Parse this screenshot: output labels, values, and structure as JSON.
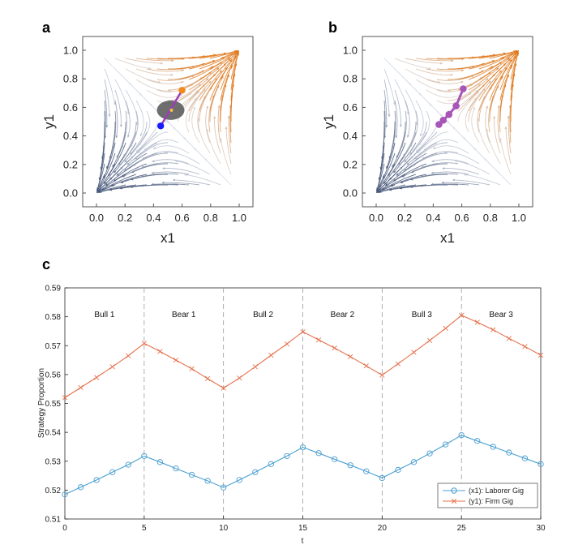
{
  "panels": {
    "a": {
      "label": "a",
      "xlabel": "x1",
      "ylabel": "y1",
      "xticks": [
        "0.0",
        "0.2",
        "0.4",
        "0.6",
        "0.8",
        "1.0"
      ],
      "yticks": [
        "0.0",
        "0.2",
        "0.4",
        "0.6",
        "0.8",
        "1.0"
      ],
      "equilibrium": [
        0.5,
        0.5
      ],
      "colors": {
        "left": "#4a5a7c",
        "mid": "#d8dee8",
        "right": "#e07a1f"
      },
      "trajectory": {
        "start": [
          0.6,
          0.72
        ],
        "end": [
          0.45,
          0.47
        ],
        "start_color": "#f18a1c",
        "end_color": "#1a1aff",
        "line_color": "#9b3fb5",
        "ellipse_center": [
          0.52,
          0.58
        ],
        "ellipse_color": "#555555"
      }
    },
    "b": {
      "label": "b",
      "xlabel": "x1",
      "ylabel": "y1",
      "xticks": [
        "0.0",
        "0.2",
        "0.4",
        "0.6",
        "0.8",
        "1.0"
      ],
      "yticks": [
        "0.0",
        "0.2",
        "0.4",
        "0.6",
        "0.8",
        "1.0"
      ],
      "equilibrium": [
        0.5,
        0.5
      ],
      "colors": {
        "left": "#4a5a7c",
        "mid": "#d8dee8",
        "right": "#e07a1f"
      },
      "trajectory": {
        "points": [
          [
            0.44,
            0.48
          ],
          [
            0.47,
            0.51
          ],
          [
            0.51,
            0.55
          ],
          [
            0.56,
            0.61
          ],
          [
            0.61,
            0.73
          ]
        ],
        "color": "#a855b8"
      }
    },
    "c": {
      "label": "c"
    }
  },
  "chart_data": {
    "type": "line",
    "title": "",
    "xlabel": "t",
    "ylabel": "Strategy Proportion",
    "xlim": [
      0,
      30
    ],
    "ylim": [
      0.51,
      0.59
    ],
    "xticks": [
      0,
      5,
      10,
      15,
      20,
      25,
      30
    ],
    "yticks": [
      0.51,
      0.52,
      0.53,
      0.54,
      0.55,
      0.56,
      0.57,
      0.58,
      0.59
    ],
    "ytick_labels": [
      "0.51",
      "0.52",
      "0.53",
      "0.54",
      "0.55",
      "0.56",
      "0.57",
      "0.58",
      "0.59"
    ],
    "phase_boundaries": [
      5,
      10,
      15,
      20,
      25
    ],
    "phases": [
      {
        "label": "Bull 1",
        "x": 2.5
      },
      {
        "label": "Bear 1",
        "x": 7.5
      },
      {
        "label": "Bull 2",
        "x": 12.5
      },
      {
        "label": "Bear 2",
        "x": 17.5
      },
      {
        "label": "Bull 3",
        "x": 22.5
      },
      {
        "label": "Bear 3",
        "x": 27.5
      }
    ],
    "legend_position": "bottom-right",
    "series": [
      {
        "name": "(x1): Laborer Gig",
        "marker": "circle",
        "color": "#4a9fd0",
        "x": [
          0,
          1,
          2,
          3,
          4,
          5,
          6,
          7,
          8,
          9,
          10,
          11,
          12,
          13,
          14,
          15,
          16,
          17,
          18,
          19,
          20,
          21,
          22,
          23,
          24,
          25,
          26,
          27,
          28,
          29,
          30
        ],
        "values": [
          0.5185,
          0.521,
          0.5235,
          0.5262,
          0.5288,
          0.5318,
          0.5297,
          0.5275,
          0.5253,
          0.5232,
          0.5209,
          0.5235,
          0.5262,
          0.529,
          0.5318,
          0.5348,
          0.5328,
          0.5307,
          0.5286,
          0.5265,
          0.5242,
          0.527,
          0.5297,
          0.5327,
          0.5358,
          0.539,
          0.537,
          0.535,
          0.533,
          0.531,
          0.529
        ]
      },
      {
        "name": "(y1): Firm Gig",
        "marker": "x",
        "color": "#e4704a",
        "x": [
          0,
          1,
          2,
          3,
          4,
          5,
          6,
          7,
          8,
          9,
          10,
          11,
          12,
          13,
          14,
          15,
          16,
          17,
          18,
          19,
          20,
          21,
          22,
          23,
          24,
          25,
          26,
          27,
          28,
          29,
          30
        ],
        "values": [
          0.552,
          0.5555,
          0.559,
          0.5627,
          0.5665,
          0.5708,
          0.568,
          0.565,
          0.562,
          0.5586,
          0.5553,
          0.5588,
          0.5627,
          0.5667,
          0.5706,
          0.5748,
          0.572,
          0.5692,
          0.5662,
          0.563,
          0.5598,
          0.5637,
          0.5677,
          0.5718,
          0.576,
          0.5805,
          0.5781,
          0.5755,
          0.5725,
          0.5697,
          0.5667
        ]
      }
    ]
  }
}
